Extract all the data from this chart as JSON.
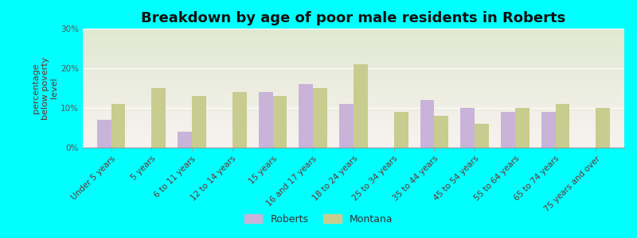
{
  "title": "Breakdown by age of poor male residents in Roberts",
  "ylabel": "percentage\nbelow poverty\nlevel",
  "categories": [
    "Under 5 years",
    "5 years",
    "6 to 11 years",
    "12 to 14 years",
    "15 years",
    "16 and 17 years",
    "18 to 24 years",
    "25 to 34 years",
    "35 to 44 years",
    "45 to 54 years",
    "55 to 64 years",
    "65 to 74 years",
    "75 years and over"
  ],
  "roberts": [
    7,
    0,
    4,
    0,
    14,
    16,
    11,
    0,
    12,
    10,
    9,
    9,
    0
  ],
  "montana": [
    11,
    15,
    13,
    14,
    13,
    15,
    21,
    9,
    8,
    6,
    10,
    11,
    10
  ],
  "roberts_color": "#c9b3d9",
  "montana_color": "#c8cc8e",
  "background_color": "#00ffff",
  "ylim": [
    0,
    30
  ],
  "yticks": [
    0,
    10,
    20,
    30
  ],
  "ytick_labels": [
    "0%",
    "10%",
    "20%",
    "30%"
  ],
  "bar_width": 0.35,
  "legend_labels": [
    "Roberts",
    "Montana"
  ],
  "title_fontsize": 13,
  "axis_fontsize": 8,
  "tick_fontsize": 7.5
}
